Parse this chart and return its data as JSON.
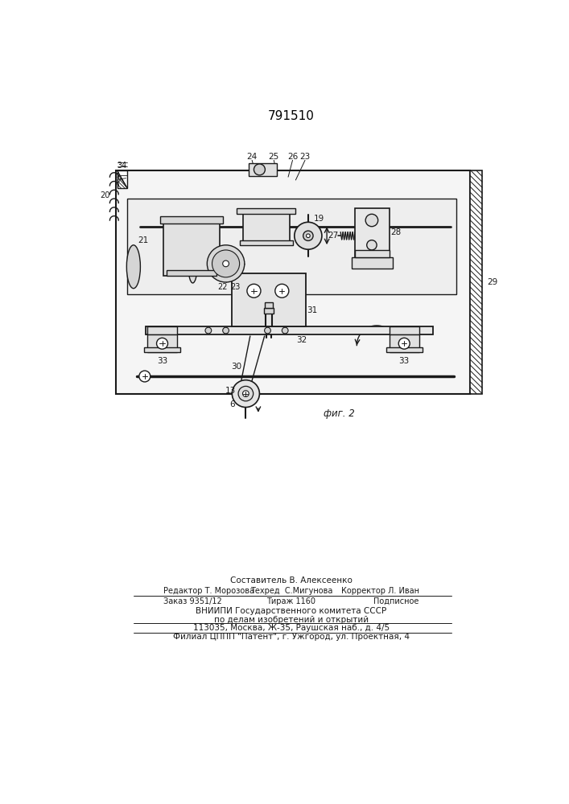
{
  "patent_number": "791510",
  "figure_label": "фиг. 2",
  "bg_color": "#ffffff",
  "line_color": "#1a1a1a",
  "footer": {
    "sostavitel": "Составитель В. Алексеенко",
    "redaktor": "Редактор Т. Морозова",
    "tehred": "Техред  С.Мигунова",
    "korrektor": "Корректор Л. Иван",
    "zakaz": "Заказ 9351/12",
    "tirazh": "Тираж 1160",
    "podpisnoe": "Подписное",
    "vniip1": "ВНИИПИ Государственного комитета СССР",
    "vniip2": "по делам изобретений и открытий",
    "address": "113035, Москва, Ж-35, Раушская наб., д. 4/5",
    "filial": "Филиал ЦППП \"Патент\", г. Ужгород, ул. Проектная, 4"
  }
}
